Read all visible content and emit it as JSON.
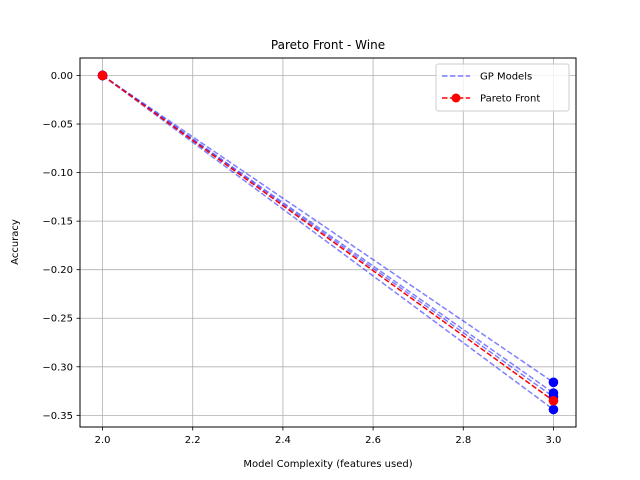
{
  "chart_data": {
    "type": "line",
    "title": "Pareto Front - Wine",
    "xlabel": "Model Complexity (features used)",
    "ylabel": "Accuracy",
    "xlim": [
      1.95,
      3.05
    ],
    "ylim": [
      -0.362,
      0.018
    ],
    "xticks": [
      2.0,
      2.2,
      2.4,
      2.6,
      2.8,
      3.0
    ],
    "xtick_labels": [
      "2.0",
      "2.2",
      "2.4",
      "2.6",
      "2.8",
      "3.0"
    ],
    "yticks": [
      0.0,
      -0.05,
      -0.1,
      -0.15,
      -0.2,
      -0.25,
      -0.3,
      -0.35
    ],
    "ytick_labels": [
      "0.00",
      "−0.05",
      "−0.10",
      "−0.15",
      "−0.20",
      "−0.25",
      "−0.30",
      "−0.35"
    ],
    "grid": true,
    "legend_position": "top-right",
    "legend": [
      {
        "label": "GP Models",
        "color": "#7b7bff",
        "style": "dashed",
        "marker": "none"
      },
      {
        "label": "Pareto Front",
        "color": "#ff0000",
        "style": "dashed",
        "marker": "circle"
      }
    ],
    "series": [
      {
        "role": "gp",
        "color": "#0000ff",
        "points": [
          [
            2.0,
            0.0
          ],
          [
            3.0,
            -0.316
          ]
        ]
      },
      {
        "role": "gp",
        "color": "#0000ff",
        "points": [
          [
            2.0,
            0.0
          ],
          [
            3.0,
            -0.327
          ]
        ]
      },
      {
        "role": "gp",
        "color": "#0000ff",
        "points": [
          [
            2.0,
            0.0
          ],
          [
            3.0,
            -0.331
          ]
        ]
      },
      {
        "role": "gp",
        "color": "#0000ff",
        "points": [
          [
            2.0,
            0.0
          ],
          [
            3.0,
            -0.344
          ]
        ]
      },
      {
        "role": "pareto",
        "color": "#ff0000",
        "points": [
          [
            2.0,
            0.0
          ],
          [
            3.0,
            -0.335
          ]
        ]
      }
    ]
  }
}
